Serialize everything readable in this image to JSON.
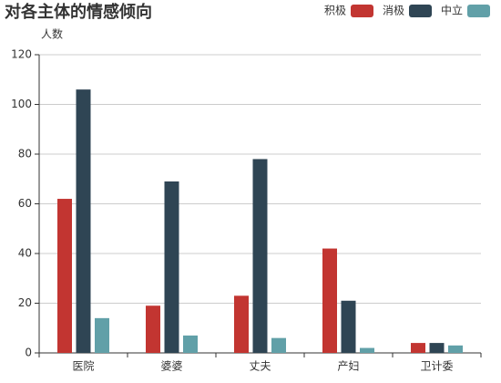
{
  "chart_data": {
    "type": "bar",
    "title": "对各主体的情感倾向",
    "y_label": "人数",
    "categories": [
      "医院",
      "婆婆",
      "丈夫",
      "产妇",
      "卫计委"
    ],
    "series": [
      {
        "name": "积极",
        "color": "#c23531",
        "values": [
          62,
          19,
          23,
          42,
          4
        ]
      },
      {
        "name": "消极",
        "color": "#2f4554",
        "values": [
          106,
          69,
          78,
          21,
          4
        ]
      },
      {
        "name": "中立",
        "color": "#61a0a8",
        "values": [
          14,
          7,
          6,
          2,
          3
        ]
      }
    ],
    "ylim": [
      0,
      120
    ],
    "yticks": [
      0,
      20,
      40,
      60,
      80,
      100,
      120
    ],
    "grid": true,
    "legend": "top-right"
  }
}
